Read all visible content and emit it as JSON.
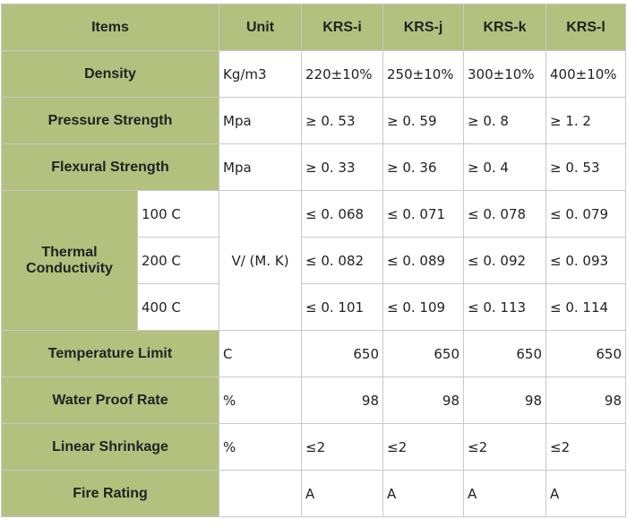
{
  "table": {
    "header": [
      "Items",
      "Unit",
      "KRS-i",
      "KRS-j",
      "KRS-k",
      "KRS-l"
    ],
    "rows": [
      {
        "label": "Density",
        "unit": "Kg/m3",
        "values": [
          "220±10%",
          "250±10%",
          "300±10%",
          "400±10%"
        ]
      },
      {
        "label": "Pressure Strength",
        "unit": "Mpa",
        "values": [
          "≥ 0. 53",
          "≥ 0. 59",
          "≥ 0. 8",
          "≥ 1. 2"
        ]
      },
      {
        "label": "Flexural Strength",
        "unit": "Mpa",
        "values": [
          "≥ 0. 33",
          "≥ 0. 36",
          "≥ 0. 4",
          "≥ 0. 53"
        ]
      },
      {
        "label": "Thermal Conductivity",
        "unit": "V/ (M. K)",
        "sub": [
          {
            "label": "100 C",
            "values": [
              "≤ 0. 068",
              "≤ 0. 071",
              "≤ 0. 078",
              "≤ 0. 079"
            ]
          },
          {
            "label": "200 C",
            "values": [
              "≤ 0. 082",
              "≤ 0. 089",
              "≤ 0. 092",
              "≤ 0. 093"
            ]
          },
          {
            "label": "400 C",
            "values": [
              "≤ 0. 101",
              "≤ 0. 109",
              "≤ 0. 113",
              "≤ 0. 114"
            ]
          }
        ]
      },
      {
        "label": "Temperature Limit",
        "unit": "C",
        "values": [
          "650",
          "650",
          "650",
          "650"
        ]
      },
      {
        "label": "Water Proof Rate",
        "unit": "%",
        "values": [
          "98",
          "98",
          "98",
          "98"
        ]
      },
      {
        "label": "Linear Shrinkage",
        "unit": "%",
        "values": [
          "≤2",
          "≤2",
          "≤2",
          "≤2"
        ]
      },
      {
        "label": "Fire Rating",
        "values": [
          "A",
          "A",
          "A",
          "A"
        ]
      }
    ]
  }
}
